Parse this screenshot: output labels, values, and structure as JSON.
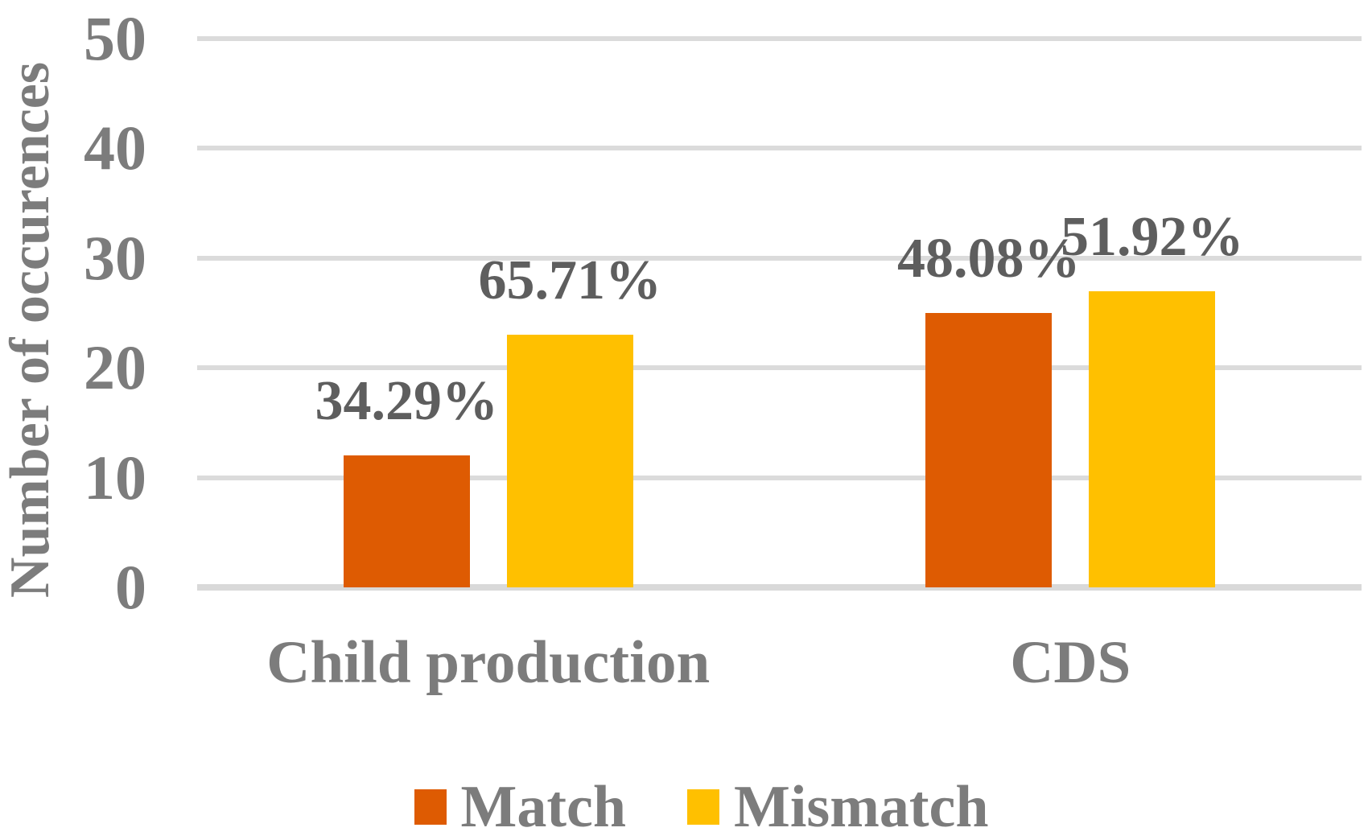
{
  "chart_data": {
    "type": "bar",
    "title": "",
    "categories": [
      "Child production",
      "CDS"
    ],
    "series": [
      {
        "name": "Match",
        "color": "#DE5B02",
        "values": [
          12,
          25
        ],
        "percent_labels": [
          "34.29%",
          "48.08%"
        ]
      },
      {
        "name": "Mismatch",
        "color": "#FFC000",
        "values": [
          23,
          27
        ],
        "percent_labels": [
          "65.71%",
          "51.92%"
        ]
      }
    ],
    "xlabel": "",
    "ylabel": "Number of occurences",
    "ylim": [
      0,
      50
    ],
    "yticks": [
      "0",
      "10",
      "20",
      "30",
      "40",
      "50"
    ],
    "grid": true,
    "legend_position": "bottom",
    "legend_labels": [
      "Match",
      "Mismatch"
    ]
  },
  "colors": {
    "match_bar": "#DE5B02",
    "mismatch_bar": "#FFC000",
    "gridline": "#DBDBDB",
    "zero_line": "#D9D9D9",
    "axis_text": "#7C7C7C",
    "data_label_text": "#5E5E5E",
    "background": "#FFFFFF"
  }
}
